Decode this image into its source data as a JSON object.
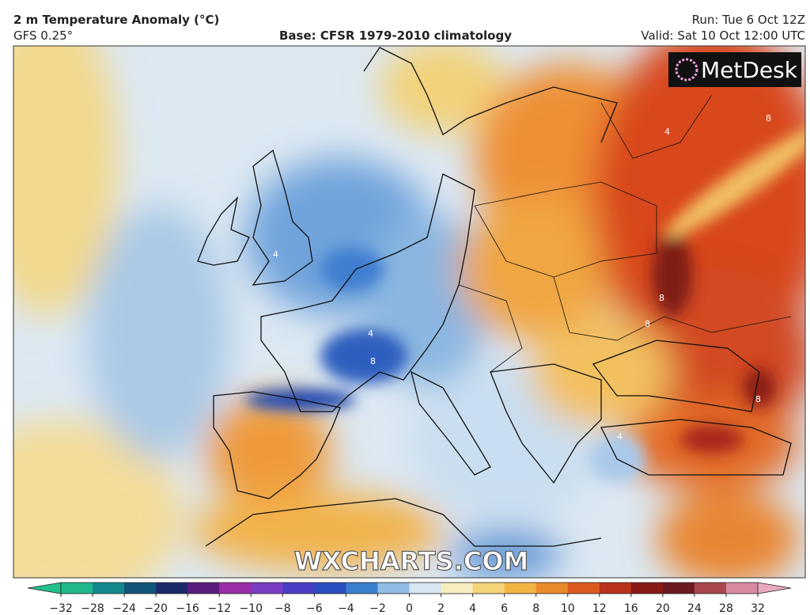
{
  "header": {
    "title": "2 m Temperature Anomaly (°C)",
    "model": "GFS 0.25°",
    "base": "Base: CFSR 1979-2010 climatology",
    "run": "Run: Tue 6 Oct 12Z",
    "valid": "Valid: Sat 10 Oct 12:00 UTC"
  },
  "logo": "MetDesk",
  "watermark": "WXCHARTS.COM",
  "contour_labels": [
    "4",
    "4",
    "8",
    "8",
    "8",
    "8",
    "4",
    "4",
    "8",
    "4"
  ],
  "colorbar": {
    "ticks": [
      "−32",
      "−28",
      "−24",
      "−20",
      "−16",
      "−12",
      "−10",
      "−8",
      "−6",
      "−4",
      "−2",
      "0",
      "2",
      "4",
      "6",
      "8",
      "10",
      "12",
      "16",
      "20",
      "24",
      "28",
      "32"
    ],
    "colors": [
      "#1fb98c",
      "#138a8e",
      "#11567a",
      "#1c2a6a",
      "#5a1c7e",
      "#9a2fa8",
      "#7a3ec4",
      "#4a3fc4",
      "#2b4fc0",
      "#3a7fd0",
      "#8fbde4",
      "#d6e6f2",
      "#f6edc0",
      "#f4d477",
      "#f1b443",
      "#ea8a2a",
      "#dc5a1f",
      "#b9321a",
      "#8a1a16",
      "#6a1a20",
      "#a8464e",
      "#d98aa0"
    ],
    "low_color": "#22c08a",
    "high_color": "#e6a9c0"
  }
}
